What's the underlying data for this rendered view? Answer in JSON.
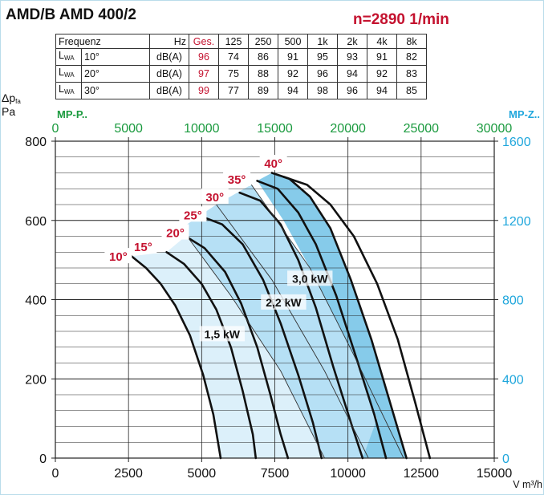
{
  "header": {
    "title": "AMD/B AMD 400/2",
    "speed": "n=2890 1/min"
  },
  "noise_table": {
    "columns": [
      "Frequenz",
      "",
      "Hz",
      "Ges.",
      "125",
      "250",
      "500",
      "1k",
      "2k",
      "4k",
      "8k"
    ],
    "rows": [
      {
        "label": "L",
        "sub": "WA",
        "angle": "10°",
        "unit": "dB(A)",
        "total": "96",
        "values": [
          "74",
          "86",
          "91",
          "95",
          "93",
          "91",
          "82"
        ]
      },
      {
        "label": "L",
        "sub": "WA",
        "angle": "20°",
        "unit": "dB(A)",
        "total": "97",
        "values": [
          "75",
          "88",
          "92",
          "96",
          "94",
          "92",
          "83"
        ]
      },
      {
        "label": "L",
        "sub": "WA",
        "angle": "30°",
        "unit": "dB(A)",
        "total": "99",
        "values": [
          "77",
          "89",
          "94",
          "98",
          "96",
          "94",
          "85"
        ]
      }
    ]
  },
  "colors": {
    "red": "#c4122f",
    "green": "#1a9a3e",
    "cyan": "#1ea6dc",
    "fill_light": "#dcf0fa",
    "fill_mid": "#b6e0f5",
    "fill_dark": "#86cbea"
  },
  "chart_data": {
    "type": "line",
    "ylabel_main": "Δp",
    "ylabel_sub": "fa",
    "ylabel_unit": "Pa",
    "xlabel": "V m³/h",
    "x_ticks": [
      "0",
      "2500",
      "5000",
      "7500",
      "10000",
      "12500",
      "15000"
    ],
    "xlim": [
      0,
      15000
    ],
    "y_ticks": [
      "0",
      "200",
      "400",
      "600",
      "800"
    ],
    "ylim": [
      0,
      800
    ],
    "top_axis": {
      "label": "MP-P..",
      "ticks": [
        "0",
        "5000",
        "10000",
        "15000",
        "20000",
        "25000",
        "30000"
      ],
      "range": [
        0,
        30000
      ]
    },
    "right_axis": {
      "label": "MP-Z..",
      "ticks": [
        "0",
        "400",
        "800",
        "1200",
        "1600"
      ],
      "range": [
        0,
        1600
      ]
    },
    "grid": true,
    "angle_curves": [
      {
        "name": "10°",
        "points": [
          [
            2600,
            510
          ],
          [
            3100,
            480
          ],
          [
            3600,
            440
          ],
          [
            4100,
            385
          ],
          [
            4600,
            310
          ],
          [
            5050,
            210
          ],
          [
            5400,
            110
          ],
          [
            5650,
            0
          ]
        ]
      },
      {
        "name": "15°",
        "points": [
          [
            3800,
            520
          ],
          [
            4400,
            490
          ],
          [
            5000,
            440
          ],
          [
            5500,
            375
          ],
          [
            6000,
            280
          ],
          [
            6400,
            170
          ],
          [
            6750,
            60
          ],
          [
            6850,
            0
          ]
        ]
      },
      {
        "name": "20°",
        "points": [
          [
            4450,
            560
          ],
          [
            5100,
            530
          ],
          [
            5800,
            470
          ],
          [
            6350,
            390
          ],
          [
            6900,
            280
          ],
          [
            7350,
            160
          ],
          [
            7700,
            60
          ],
          [
            7950,
            0
          ]
        ]
      },
      {
        "name": "25°",
        "points": [
          [
            5000,
            610
          ],
          [
            5700,
            590
          ],
          [
            6400,
            540
          ],
          [
            7100,
            450
          ],
          [
            7700,
            340
          ],
          [
            8300,
            210
          ],
          [
            8800,
            90
          ],
          [
            9100,
            0
          ]
        ]
      },
      {
        "name": "30°",
        "points": [
          [
            6300,
            670
          ],
          [
            7000,
            650
          ],
          [
            7700,
            590
          ],
          [
            8300,
            500
          ],
          [
            8900,
            380
          ],
          [
            9500,
            230
          ],
          [
            10100,
            90
          ],
          [
            10500,
            0
          ]
        ]
      },
      {
        "name": "35°",
        "points": [
          [
            6900,
            700
          ],
          [
            7600,
            680
          ],
          [
            8300,
            620
          ],
          [
            8900,
            540
          ],
          [
            9600,
            410
          ],
          [
            10300,
            250
          ],
          [
            10900,
            110
          ],
          [
            11300,
            0
          ]
        ]
      },
      {
        "name": "40°",
        "points": [
          [
            7400,
            720
          ],
          [
            8000,
            705
          ],
          [
            8700,
            660
          ],
          [
            9400,
            580
          ],
          [
            10100,
            450
          ],
          [
            10800,
            300
          ],
          [
            11400,
            150
          ],
          [
            12000,
            0
          ]
        ]
      },
      {
        "name": "",
        "points": [
          [
            7800,
            710
          ],
          [
            8600,
            690
          ],
          [
            9400,
            640
          ],
          [
            10200,
            560
          ],
          [
            11000,
            440
          ],
          [
            11700,
            300
          ],
          [
            12300,
            140
          ],
          [
            12800,
            0
          ]
        ]
      }
    ],
    "angle_labels": [
      {
        "text": "10°",
        "x": 2150,
        "y": 500
      },
      {
        "text": "15°",
        "x": 3000,
        "y": 525
      },
      {
        "text": "20°",
        "x": 4100,
        "y": 560
      },
      {
        "text": "25°",
        "x": 4700,
        "y": 605
      },
      {
        "text": "30°",
        "x": 5450,
        "y": 650
      },
      {
        "text": "35°",
        "x": 6200,
        "y": 695
      },
      {
        "text": "40°",
        "x": 7450,
        "y": 735
      }
    ],
    "power_lines": [
      {
        "name": "1,5 kW",
        "points": [
          [
            4300,
            580
          ],
          [
            6000,
            410
          ],
          [
            7700,
            220
          ],
          [
            9200,
            0
          ]
        ],
        "label_x": 5700,
        "label_y": 305
      },
      {
        "name": "2,2 kW",
        "points": [
          [
            5500,
            640
          ],
          [
            7400,
            450
          ],
          [
            9200,
            220
          ],
          [
            10700,
            0
          ]
        ],
        "label_x": 7800,
        "label_y": 385
      },
      {
        "name": "3,0 kW",
        "points": [
          [
            6700,
            690
          ],
          [
            8700,
            480
          ],
          [
            10200,
            260
          ],
          [
            11900,
            0
          ]
        ],
        "label_x": 8700,
        "label_y": 445
      }
    ],
    "regions": [
      {
        "name": "light",
        "points": [
          [
            2600,
            510
          ],
          [
            3800,
            520
          ],
          [
            4450,
            560
          ],
          [
            5000,
            610
          ],
          [
            6300,
            670
          ],
          [
            6900,
            700
          ],
          [
            7400,
            720
          ],
          [
            6700,
            690
          ],
          [
            5500,
            640
          ],
          [
            4300,
            580
          ],
          [
            6000,
            410
          ],
          [
            7700,
            220
          ],
          [
            9200,
            0
          ],
          [
            5650,
            0
          ],
          [
            5400,
            110
          ],
          [
            5050,
            210
          ],
          [
            4600,
            310
          ],
          [
            4100,
            385
          ],
          [
            3600,
            440
          ],
          [
            3100,
            480
          ]
        ]
      },
      {
        "name": "mid",
        "points": [
          [
            4300,
            580
          ],
          [
            5500,
            640
          ],
          [
            6700,
            690
          ],
          [
            8700,
            480
          ],
          [
            10200,
            260
          ],
          [
            11900,
            0
          ],
          [
            9200,
            0
          ],
          [
            7700,
            220
          ],
          [
            6000,
            410
          ]
        ]
      },
      {
        "name": "dark",
        "points": [
          [
            6900,
            700
          ],
          [
            7400,
            720
          ],
          [
            8000,
            705
          ],
          [
            8700,
            660
          ],
          [
            9400,
            580
          ],
          [
            10100,
            450
          ],
          [
            10800,
            300
          ],
          [
            11400,
            150
          ],
          [
            12000,
            0
          ],
          [
            10500,
            0
          ],
          [
            11000,
            100
          ],
          [
            10200,
            260
          ],
          [
            8700,
            480
          ],
          [
            7800,
            600
          ]
        ]
      }
    ]
  }
}
